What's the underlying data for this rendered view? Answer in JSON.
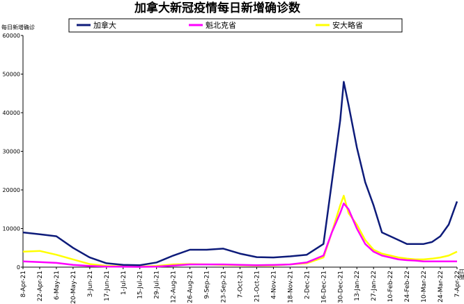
{
  "chart_data": {
    "type": "line",
    "title": "加拿大新冠疫情每日新增确诊数",
    "ylabel": "每日新增确诊",
    "xlabel": "日期",
    "ylim": [
      0,
      60000
    ],
    "yticks": [
      "0",
      "10000",
      "20000",
      "30000",
      "40000",
      "50000",
      "60000"
    ],
    "xticks": [
      "8-Apr-21",
      "22-Apr-21",
      "6-May-21",
      "20-May-21",
      "3-Jun-21",
      "17-Jun-21",
      "1-Jul-21",
      "15-Jul-21",
      "29-Jul-21",
      "12-Aug-21",
      "26-Aug-21",
      "9-Sep-21",
      "23-Sep-21",
      "7-Oct-21",
      "21-Oct-21",
      "4-Nov-21",
      "18-Nov-21",
      "2-Dec-21",
      "16-Dec-21",
      "30-Dec-21",
      "13-Jan-22",
      "27-Jan-22",
      "10-Feb-22",
      "24-Feb-22",
      "10-Mar-22",
      "24-Mar-22",
      "7-Apr-22"
    ],
    "x_start": "8-Apr-21",
    "x_end": "7-Apr-22",
    "legend_position": "top",
    "grid": false,
    "series": [
      {
        "name": "加拿大",
        "color": "#0d1b7a",
        "x": [
          "8-Apr-21",
          "22-Apr-21",
          "6-May-21",
          "20-May-21",
          "3-Jun-21",
          "17-Jun-21",
          "1-Jul-21",
          "15-Jul-21",
          "29-Jul-21",
          "12-Aug-21",
          "26-Aug-21",
          "9-Sep-21",
          "23-Sep-21",
          "7-Oct-21",
          "21-Oct-21",
          "4-Nov-21",
          "18-Nov-21",
          "2-Dec-21",
          "16-Dec-21",
          "23-Dec-21",
          "30-Dec-21",
          "2-Jan-22",
          "6-Jan-22",
          "13-Jan-22",
          "20-Jan-22",
          "27-Jan-22",
          "3-Feb-22",
          "10-Feb-22",
          "17-Feb-22",
          "24-Feb-22",
          "3-Mar-22",
          "10-Mar-22",
          "17-Mar-22",
          "24-Mar-22",
          "31-Mar-22",
          "7-Apr-22"
        ],
        "values": [
          9000,
          8500,
          8000,
          5000,
          2500,
          1000,
          600,
          500,
          1200,
          3000,
          4500,
          4500,
          4800,
          3500,
          2600,
          2500,
          2800,
          3200,
          6000,
          22000,
          38000,
          48000,
          42000,
          31000,
          22000,
          16000,
          9000,
          8000,
          7000,
          6000,
          6000,
          6000,
          6500,
          8000,
          11000,
          17000
        ]
      },
      {
        "name": "魁北克省",
        "color": "#ff00ff",
        "x": [
          "8-Apr-21",
          "22-Apr-21",
          "6-May-21",
          "20-May-21",
          "3-Jun-21",
          "17-Jun-21",
          "1-Jul-21",
          "15-Jul-21",
          "29-Jul-21",
          "12-Aug-21",
          "26-Aug-21",
          "9-Sep-21",
          "23-Sep-21",
          "7-Oct-21",
          "21-Oct-21",
          "4-Nov-21",
          "18-Nov-21",
          "2-Dec-21",
          "16-Dec-21",
          "23-Dec-21",
          "30-Dec-21",
          "2-Jan-22",
          "6-Jan-22",
          "13-Jan-22",
          "20-Jan-22",
          "27-Jan-22",
          "3-Feb-22",
          "10-Feb-22",
          "17-Feb-22",
          "24-Feb-22",
          "3-Mar-22",
          "10-Mar-22",
          "17-Mar-22",
          "24-Mar-22",
          "31-Mar-22",
          "7-Apr-22"
        ],
        "values": [
          1500,
          1300,
          1100,
          600,
          300,
          150,
          100,
          80,
          150,
          400,
          700,
          700,
          700,
          600,
          500,
          550,
          700,
          1200,
          3000,
          9000,
          14000,
          16500,
          15000,
          10000,
          6000,
          4000,
          3000,
          2500,
          2000,
          1800,
          1700,
          1500,
          1500,
          1500,
          1500,
          1500
        ]
      },
      {
        "name": "安大略省",
        "color": "#ffff00",
        "x": [
          "8-Apr-21",
          "22-Apr-21",
          "6-May-21",
          "20-May-21",
          "3-Jun-21",
          "17-Jun-21",
          "1-Jul-21",
          "15-Jul-21",
          "29-Jul-21",
          "12-Aug-21",
          "26-Aug-21",
          "9-Sep-21",
          "23-Sep-21",
          "7-Oct-21",
          "21-Oct-21",
          "4-Nov-21",
          "18-Nov-21",
          "2-Dec-21",
          "16-Dec-21",
          "23-Dec-21",
          "30-Dec-21",
          "2-Jan-22",
          "6-Jan-22",
          "13-Jan-22",
          "20-Jan-22",
          "27-Jan-22",
          "3-Feb-22",
          "10-Feb-22",
          "17-Feb-22",
          "24-Feb-22",
          "3-Mar-22",
          "10-Mar-22",
          "17-Mar-22",
          "24-Mar-22",
          "31-Mar-22",
          "7-Apr-22"
        ],
        "values": [
          4000,
          4200,
          3200,
          2000,
          800,
          300,
          200,
          150,
          300,
          700,
          800,
          700,
          600,
          500,
          400,
          450,
          700,
          1000,
          2500,
          9000,
          16000,
          18500,
          14000,
          11000,
          7000,
          4500,
          3500,
          3000,
          2500,
          2200,
          2000,
          2000,
          2200,
          2500,
          3000,
          4000
        ]
      }
    ]
  }
}
